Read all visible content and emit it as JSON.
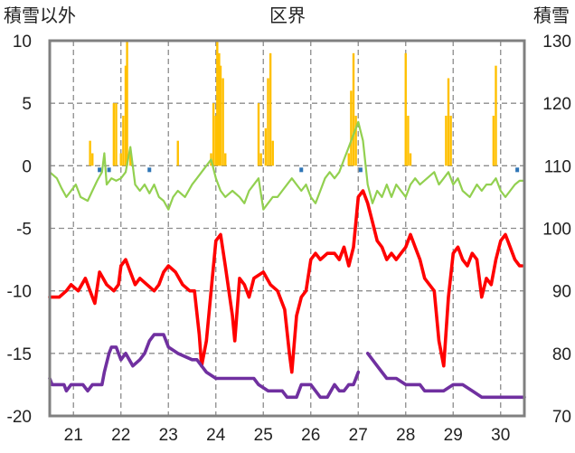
{
  "chart_data": {
    "type": "line",
    "title": "区界",
    "y_left_label": "積雪以外",
    "y_right_label": "積雪",
    "y_left_range": [
      -20,
      10
    ],
    "y_right_range": [
      70,
      130
    ],
    "y_left_ticks": [
      "10",
      "5",
      "0",
      "-5",
      "-10",
      "-15",
      "-20"
    ],
    "y_right_ticks": [
      "130",
      "120",
      "110",
      "100",
      "90",
      "80",
      "70"
    ],
    "x_range": [
      20.5,
      30.5
    ],
    "x_ticks": [
      "21",
      "22",
      "23",
      "24",
      "25",
      "26",
      "27",
      "28",
      "29",
      "30"
    ],
    "grid": "dashed vertical day boundaries and horizontal lines at every 5 units",
    "legend": "none",
    "colors": {
      "precip_bars": "#FFC000",
      "snowfall_marks": "#2E75B6",
      "green_series": "#92D050",
      "red_series": "#FF0000",
      "purple_series": "#7030A0",
      "grid": "#8c8c8c",
      "frame": "#808080"
    },
    "precip_bars": [
      {
        "x": 21.35,
        "y": 2.0
      },
      {
        "x": 21.4,
        "y": 1.0
      },
      {
        "x": 21.85,
        "y": 5.0
      },
      {
        "x": 21.9,
        "y": 5.0
      },
      {
        "x": 22.0,
        "y": 1.0
      },
      {
        "x": 22.05,
        "y": 4.0
      },
      {
        "x": 22.1,
        "y": 8.0
      },
      {
        "x": 22.13,
        "y": 10.0
      },
      {
        "x": 22.2,
        "y": 1.0
      },
      {
        "x": 23.2,
        "y": 2.0
      },
      {
        "x": 23.9,
        "y": 1.0
      },
      {
        "x": 23.95,
        "y": 5.0
      },
      {
        "x": 24.0,
        "y": 4.0
      },
      {
        "x": 24.03,
        "y": 10.0
      },
      {
        "x": 24.07,
        "y": 9.0
      },
      {
        "x": 24.1,
        "y": 8.0
      },
      {
        "x": 24.15,
        "y": 7.0
      },
      {
        "x": 24.2,
        "y": 1.0
      },
      {
        "x": 24.9,
        "y": 5.0
      },
      {
        "x": 24.95,
        "y": 1.0
      },
      {
        "x": 25.05,
        "y": 3.0
      },
      {
        "x": 25.1,
        "y": 7.0
      },
      {
        "x": 25.15,
        "y": 9.0
      },
      {
        "x": 25.2,
        "y": 2.0
      },
      {
        "x": 26.8,
        "y": 1.0
      },
      {
        "x": 26.85,
        "y": 6.0
      },
      {
        "x": 26.9,
        "y": 9.0
      },
      {
        "x": 26.95,
        "y": 4.0
      },
      {
        "x": 28.0,
        "y": 9.0
      },
      {
        "x": 28.05,
        "y": 4.0
      },
      {
        "x": 28.1,
        "y": 1.0
      },
      {
        "x": 28.85,
        "y": 4.0
      },
      {
        "x": 28.9,
        "y": 7.0
      },
      {
        "x": 28.95,
        "y": 4.0
      },
      {
        "x": 29.85,
        "y": 4.0
      },
      {
        "x": 29.9,
        "y": 8.0
      }
    ],
    "snowfall_marks": [
      {
        "x": 21.55,
        "y": -0.3
      },
      {
        "x": 21.75,
        "y": -0.3
      },
      {
        "x": 22.6,
        "y": -0.3
      },
      {
        "x": 25.8,
        "y": -0.3
      },
      {
        "x": 27.05,
        "y": -0.3
      },
      {
        "x": 30.35,
        "y": -0.3
      }
    ],
    "series": [
      {
        "color": "#92D050",
        "values": [
          [
            20.5,
            -0.5
          ],
          [
            20.65,
            -1.0
          ],
          [
            20.75,
            -1.8
          ],
          [
            20.85,
            -2.5
          ],
          [
            20.95,
            -2.0
          ],
          [
            21.05,
            -1.5
          ],
          [
            21.15,
            -2.5
          ],
          [
            21.3,
            -2.8
          ],
          [
            21.4,
            -2.0
          ],
          [
            21.5,
            -1.2
          ],
          [
            21.6,
            -0.5
          ],
          [
            21.65,
            1.0
          ],
          [
            21.7,
            -1.5
          ],
          [
            21.8,
            -1.0
          ],
          [
            21.9,
            -1.2
          ],
          [
            22.0,
            -1.0
          ],
          [
            22.1,
            -0.5
          ],
          [
            22.2,
            1.5
          ],
          [
            22.3,
            -1.5
          ],
          [
            22.4,
            -2.0
          ],
          [
            22.5,
            -1.5
          ],
          [
            22.6,
            -2.2
          ],
          [
            22.7,
            -1.5
          ],
          [
            22.8,
            -2.5
          ],
          [
            22.9,
            -2.8
          ],
          [
            23.0,
            -3.5
          ],
          [
            23.1,
            -2.5
          ],
          [
            23.2,
            -2.0
          ],
          [
            23.35,
            -2.5
          ],
          [
            23.5,
            -1.5
          ],
          [
            23.6,
            -1.0
          ],
          [
            23.7,
            -0.5
          ],
          [
            23.8,
            0.0
          ],
          [
            23.9,
            0.5
          ],
          [
            24.0,
            -1.0
          ],
          [
            24.1,
            -2.0
          ],
          [
            24.2,
            -2.5
          ],
          [
            24.35,
            -2.0
          ],
          [
            24.5,
            -2.5
          ],
          [
            24.6,
            -3.0
          ],
          [
            24.7,
            -2.0
          ],
          [
            24.8,
            -1.5
          ],
          [
            24.9,
            -1.0
          ],
          [
            25.0,
            -3.5
          ],
          [
            25.1,
            -3.0
          ],
          [
            25.2,
            -2.5
          ],
          [
            25.3,
            -2.5
          ],
          [
            25.4,
            -2.0
          ],
          [
            25.5,
            -1.5
          ],
          [
            25.6,
            -1.0
          ],
          [
            25.7,
            -1.5
          ],
          [
            25.8,
            -2.0
          ],
          [
            25.9,
            -1.5
          ],
          [
            26.0,
            -2.5
          ],
          [
            26.1,
            -3.0
          ],
          [
            26.2,
            -2.0
          ],
          [
            26.3,
            -1.0
          ],
          [
            26.4,
            -0.5
          ],
          [
            26.5,
            -1.0
          ],
          [
            26.6,
            -0.5
          ],
          [
            26.7,
            0.5
          ],
          [
            26.8,
            1.5
          ],
          [
            26.9,
            2.5
          ],
          [
            27.0,
            3.5
          ],
          [
            27.1,
            2.0
          ],
          [
            27.2,
            -1.5
          ],
          [
            27.3,
            -3.0
          ],
          [
            27.4,
            -2.0
          ],
          [
            27.5,
            -2.5
          ],
          [
            27.6,
            -1.5
          ],
          [
            27.7,
            -2.5
          ],
          [
            27.8,
            -1.5
          ],
          [
            27.9,
            -2.0
          ],
          [
            28.0,
            -2.5
          ],
          [
            28.1,
            -1.5
          ],
          [
            28.2,
            -1.0
          ],
          [
            28.3,
            -1.5
          ],
          [
            28.45,
            -1.0
          ],
          [
            28.6,
            -0.5
          ],
          [
            28.7,
            -1.5
          ],
          [
            28.8,
            -1.0
          ],
          [
            28.9,
            -0.5
          ],
          [
            29.0,
            -1.5
          ],
          [
            29.1,
            -1.0
          ],
          [
            29.2,
            -2.0
          ],
          [
            29.35,
            -2.5
          ],
          [
            29.5,
            -1.5
          ],
          [
            29.6,
            -2.0
          ],
          [
            29.7,
            -1.5
          ],
          [
            29.8,
            -1.5
          ],
          [
            29.9,
            -1.0
          ],
          [
            30.0,
            -2.0
          ],
          [
            30.1,
            -2.5
          ],
          [
            30.2,
            -2.0
          ],
          [
            30.3,
            -1.5
          ],
          [
            30.4,
            -1.2
          ],
          [
            30.5,
            -1.2
          ]
        ]
      },
      {
        "color": "#FF0000",
        "values": [
          [
            20.5,
            -10.5
          ],
          [
            20.7,
            -10.5
          ],
          [
            20.85,
            -10.0
          ],
          [
            20.95,
            -9.5
          ],
          [
            21.1,
            -10.0
          ],
          [
            21.25,
            -9.0
          ],
          [
            21.4,
            -10.5
          ],
          [
            21.45,
            -11.0
          ],
          [
            21.55,
            -8.5
          ],
          [
            21.7,
            -9.5
          ],
          [
            21.85,
            -10.0
          ],
          [
            21.95,
            -9.5
          ],
          [
            22.0,
            -8.0
          ],
          [
            22.1,
            -7.5
          ],
          [
            22.2,
            -8.5
          ],
          [
            22.3,
            -9.5
          ],
          [
            22.4,
            -9.0
          ],
          [
            22.55,
            -9.5
          ],
          [
            22.7,
            -10.0
          ],
          [
            22.8,
            -9.5
          ],
          [
            22.9,
            -8.5
          ],
          [
            23.0,
            -8.0
          ],
          [
            23.15,
            -8.5
          ],
          [
            23.3,
            -9.5
          ],
          [
            23.45,
            -10.0
          ],
          [
            23.55,
            -10.0
          ],
          [
            23.65,
            -13.5
          ],
          [
            23.7,
            -16.0
          ],
          [
            23.8,
            -14.0
          ],
          [
            23.9,
            -10.0
          ],
          [
            24.0,
            -6.0
          ],
          [
            24.1,
            -5.5
          ],
          [
            24.2,
            -8.0
          ],
          [
            24.35,
            -12.0
          ],
          [
            24.4,
            -14.0
          ],
          [
            24.5,
            -9.0
          ],
          [
            24.6,
            -9.5
          ],
          [
            24.7,
            -10.5
          ],
          [
            24.8,
            -9.0
          ],
          [
            25.0,
            -8.5
          ],
          [
            25.15,
            -9.5
          ],
          [
            25.3,
            -10.0
          ],
          [
            25.45,
            -11.5
          ],
          [
            25.55,
            -15.0
          ],
          [
            25.6,
            -16.5
          ],
          [
            25.7,
            -12.0
          ],
          [
            25.8,
            -10.5
          ],
          [
            25.9,
            -10.0
          ],
          [
            26.0,
            -7.5
          ],
          [
            26.1,
            -7.0
          ],
          [
            26.2,
            -7.5
          ],
          [
            26.35,
            -7.0
          ],
          [
            26.5,
            -7.0
          ],
          [
            26.6,
            -7.5
          ],
          [
            26.7,
            -6.5
          ],
          [
            26.8,
            -8.0
          ],
          [
            26.9,
            -6.5
          ],
          [
            27.0,
            -2.5
          ],
          [
            27.1,
            -2.0
          ],
          [
            27.2,
            -3.0
          ],
          [
            27.3,
            -4.5
          ],
          [
            27.4,
            -6.0
          ],
          [
            27.5,
            -6.5
          ],
          [
            27.6,
            -7.5
          ],
          [
            27.7,
            -7.0
          ],
          [
            27.8,
            -7.5
          ],
          [
            27.9,
            -7.0
          ],
          [
            28.0,
            -6.5
          ],
          [
            28.1,
            -5.5
          ],
          [
            28.2,
            -6.5
          ],
          [
            28.3,
            -7.5
          ],
          [
            28.4,
            -9.0
          ],
          [
            28.5,
            -9.5
          ],
          [
            28.6,
            -10.0
          ],
          [
            28.7,
            -14.0
          ],
          [
            28.8,
            -16.0
          ],
          [
            28.9,
            -10.5
          ],
          [
            29.0,
            -7.0
          ],
          [
            29.1,
            -6.5
          ],
          [
            29.2,
            -7.5
          ],
          [
            29.3,
            -8.0
          ],
          [
            29.4,
            -7.0
          ],
          [
            29.5,
            -7.5
          ],
          [
            29.6,
            -10.5
          ],
          [
            29.7,
            -9.0
          ],
          [
            29.8,
            -9.5
          ],
          [
            29.9,
            -7.5
          ],
          [
            30.0,
            -6.0
          ],
          [
            30.1,
            -5.5
          ],
          [
            30.2,
            -6.5
          ],
          [
            30.3,
            -7.5
          ],
          [
            30.4,
            -8.0
          ],
          [
            30.45,
            -8.0
          ]
        ]
      },
      {
        "color": "#7030A0",
        "segments": [
          [
            [
              20.5,
              -17.0
            ],
            [
              20.55,
              -17.5
            ],
            [
              20.8,
              -17.5
            ],
            [
              20.85,
              -18.0
            ],
            [
              20.95,
              -17.5
            ],
            [
              21.2,
              -17.5
            ],
            [
              21.3,
              -18.0
            ],
            [
              21.4,
              -17.5
            ],
            [
              21.6,
              -17.5
            ],
            [
              21.65,
              -16.5
            ],
            [
              21.75,
              -15.0
            ],
            [
              21.8,
              -14.5
            ],
            [
              21.9,
              -14.5
            ],
            [
              22.0,
              -15.5
            ],
            [
              22.1,
              -15.0
            ],
            [
              22.25,
              -16.0
            ],
            [
              22.4,
              -15.5
            ],
            [
              22.5,
              -15.0
            ],
            [
              22.6,
              -14.0
            ],
            [
              22.7,
              -13.5
            ],
            [
              22.9,
              -13.5
            ],
            [
              23.0,
              -14.5
            ],
            [
              23.2,
              -15.0
            ],
            [
              23.5,
              -15.5
            ],
            [
              23.6,
              -15.5
            ],
            [
              23.7,
              -16.0
            ],
            [
              23.8,
              -16.5
            ],
            [
              24.0,
              -17.0
            ],
            [
              24.8,
              -17.0
            ],
            [
              24.9,
              -17.5
            ],
            [
              25.1,
              -18.0
            ],
            [
              25.4,
              -18.0
            ],
            [
              25.5,
              -18.5
            ],
            [
              25.7,
              -18.5
            ],
            [
              25.8,
              -17.5
            ],
            [
              25.9,
              -17.5
            ],
            [
              26.0,
              -17.5
            ],
            [
              26.1,
              -18.0
            ],
            [
              26.2,
              -18.5
            ],
            [
              26.35,
              -18.5
            ],
            [
              26.5,
              -17.5
            ],
            [
              26.6,
              -18.0
            ],
            [
              26.7,
              -18.0
            ],
            [
              26.8,
              -17.5
            ],
            [
              26.9,
              -17.5
            ],
            [
              27.0,
              -16.5
            ]
          ],
          [
            [
              27.2,
              -15.0
            ],
            [
              27.3,
              -15.5
            ],
            [
              27.4,
              -16.0
            ],
            [
              27.5,
              -16.5
            ],
            [
              27.6,
              -17.0
            ],
            [
              27.8,
              -17.0
            ],
            [
              28.0,
              -17.5
            ],
            [
              28.3,
              -17.5
            ],
            [
              28.4,
              -18.0
            ],
            [
              28.5,
              -18.0
            ],
            [
              28.6,
              -18.0
            ],
            [
              28.8,
              -18.0
            ],
            [
              29.0,
              -17.5
            ],
            [
              29.2,
              -17.5
            ],
            [
              29.4,
              -18.0
            ],
            [
              29.6,
              -18.5
            ],
            [
              30.5,
              -18.5
            ]
          ]
        ]
      }
    ]
  }
}
